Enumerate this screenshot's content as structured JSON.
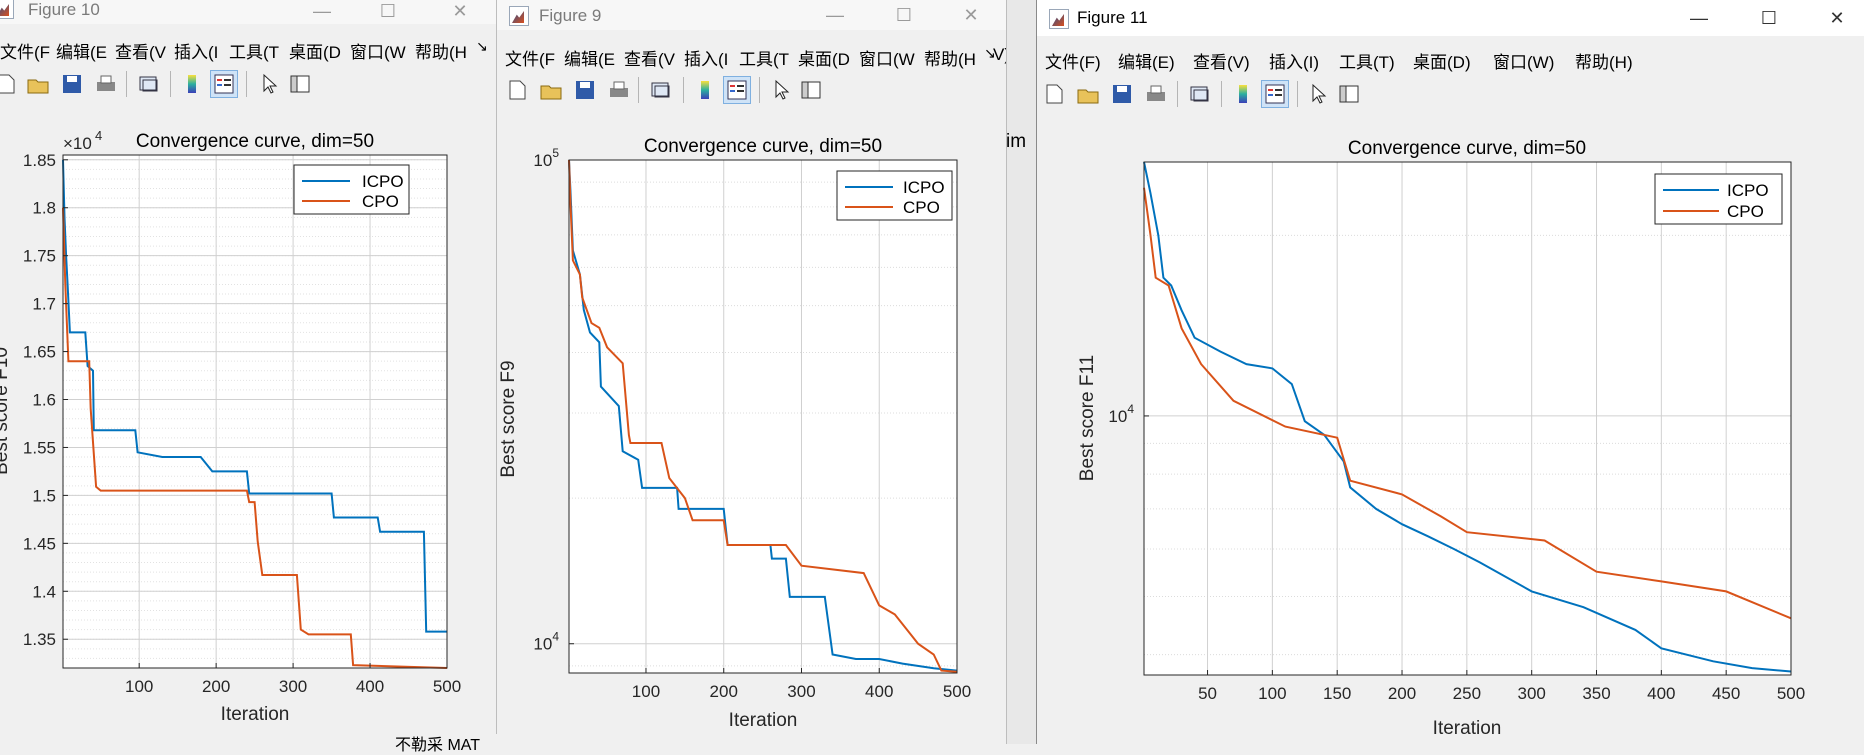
{
  "windows": [
    {
      "id": "fig10",
      "title": "Figure 10",
      "menu": [
        "文件(F",
        "编辑(E",
        "查看(V",
        "插入(I",
        "工具(T",
        "桌面(D",
        "窗口(W",
        "帮助(H"
      ],
      "menu_overflow": "↘",
      "plot_title": "Convergence curve, dim=50",
      "xlabel": "Iteration",
      "ylabel": "Best score F10",
      "exponent_label": "×10",
      "exponent_power": "4",
      "legend": [
        "ICPO",
        "CPO"
      ]
    },
    {
      "id": "fig9",
      "title": "Figure 9",
      "menu": [
        "文件(F",
        "编辑(E",
        "查看(V",
        "插入(I",
        "工具(T",
        "桌面(D",
        "窗口(W",
        "帮助(H"
      ],
      "menu_overflow": "↘",
      "menu_behind": "V)",
      "plot_title": "Convergence curve, dim=50",
      "xlabel": "Iteration",
      "ylabel": "Best score F9",
      "legend": [
        "ICPO",
        "CPO"
      ]
    },
    {
      "id": "fig11",
      "title": "Figure 11",
      "menu": [
        "文件(F)",
        "编辑(E)",
        "查看(V)",
        "插入(I)",
        "工具(T)",
        "桌面(D)",
        "窗口(W)",
        "帮助(H)"
      ],
      "plot_title": "Convergence curve, dim=50",
      "xlabel": "Iteration",
      "ylabel": "Best score F11",
      "legend": [
        "ICPO",
        "CPO"
      ]
    }
  ],
  "background_fragments": {
    "behind_fig9_axes": "im",
    "behind_fig10_taskbar": "不勒采 MAT"
  },
  "colors": {
    "icpo": "#0072BD",
    "cpo": "#D95319",
    "axes_bg": "#ffffff",
    "figure_bg": "#f0f0f0"
  },
  "chart_data": [
    {
      "type": "line",
      "title": "Convergence curve, dim=50",
      "xlabel": "Iteration",
      "ylabel": "Best score F10",
      "xlim": [
        1,
        500
      ],
      "ylim": [
        13200,
        18550
      ],
      "yscale": "linear",
      "y_exponent": 4,
      "xticks": [
        100,
        200,
        300,
        400,
        500
      ],
      "yticks": [
        13500,
        14000,
        14500,
        15000,
        15500,
        16000,
        16500,
        17000,
        17500,
        18000,
        18500
      ],
      "ytick_labels": [
        "1.35",
        "1.4",
        "1.45",
        "1.5",
        "1.55",
        "1.6",
        "1.65",
        "1.7",
        "1.75",
        "1.8",
        "1.85"
      ],
      "grid": true,
      "legend_position": "top-right",
      "series": [
        {
          "name": "ICPO",
          "points": [
            [
              1,
              18500
            ],
            [
              3,
              17900
            ],
            [
              5,
              17500
            ],
            [
              7,
              17200
            ],
            [
              10,
              16700
            ],
            [
              30,
              16700
            ],
            [
              33,
              16350
            ],
            [
              40,
              16300
            ],
            [
              41,
              15680
            ],
            [
              95,
              15680
            ],
            [
              98,
              15450
            ],
            [
              130,
              15400
            ],
            [
              180,
              15400
            ],
            [
              195,
              15250
            ],
            [
              240,
              15250
            ],
            [
              243,
              15020
            ],
            [
              350,
              15020
            ],
            [
              353,
              14770
            ],
            [
              410,
              14770
            ],
            [
              413,
              14620
            ],
            [
              470,
              14620
            ],
            [
              473,
              13580
            ],
            [
              500,
              13580
            ]
          ]
        },
        {
          "name": "CPO",
          "points": [
            [
              1,
              18000
            ],
            [
              4,
              17200
            ],
            [
              8,
              16400
            ],
            [
              35,
              16400
            ],
            [
              37,
              15900
            ],
            [
              44,
              15090
            ],
            [
              50,
              15050
            ],
            [
              240,
              15050
            ],
            [
              243,
              14930
            ],
            [
              250,
              14930
            ],
            [
              254,
              14520
            ],
            [
              260,
              14170
            ],
            [
              305,
              14170
            ],
            [
              310,
              13600
            ],
            [
              320,
              13550
            ],
            [
              375,
              13550
            ],
            [
              378,
              13230
            ],
            [
              500,
              13200
            ]
          ]
        }
      ]
    },
    {
      "type": "line",
      "title": "Convergence curve, dim=50",
      "xlabel": "Iteration",
      "ylabel": "Best score F9",
      "xlim": [
        1,
        500
      ],
      "ylim": [
        8700,
        100000
      ],
      "yscale": "log",
      "xticks": [
        100,
        200,
        300,
        400,
        500
      ],
      "yticks": [
        10000,
        100000
      ],
      "ytick_labels": [
        "10^4",
        "10^5"
      ],
      "grid": true,
      "legend_position": "top-right",
      "series": [
        {
          "name": "ICPO",
          "points": [
            [
              1,
              100000
            ],
            [
              3,
              85000
            ],
            [
              6,
              65000
            ],
            [
              15,
              58000
            ],
            [
              20,
              49000
            ],
            [
              28,
              44000
            ],
            [
              40,
              42000
            ],
            [
              42,
              34000
            ],
            [
              65,
              31000
            ],
            [
              70,
              25000
            ],
            [
              90,
              24000
            ],
            [
              95,
              21000
            ],
            [
              140,
              21000
            ],
            [
              142,
              19000
            ],
            [
              200,
              19000
            ],
            [
              205,
              16000
            ],
            [
              260,
              16000
            ],
            [
              262,
              15000
            ],
            [
              280,
              15000
            ],
            [
              285,
              12500
            ],
            [
              330,
              12500
            ],
            [
              340,
              9500
            ],
            [
              370,
              9300
            ],
            [
              400,
              9300
            ],
            [
              430,
              9100
            ],
            [
              470,
              8900
            ],
            [
              500,
              8800
            ]
          ]
        },
        {
          "name": "CPO",
          "points": [
            [
              1,
              100000
            ],
            [
              3,
              80000
            ],
            [
              6,
              62000
            ],
            [
              15,
              58000
            ],
            [
              18,
              52000
            ],
            [
              30,
              46000
            ],
            [
              40,
              45000
            ],
            [
              50,
              41000
            ],
            [
              70,
              38000
            ],
            [
              78,
              27000
            ],
            [
              80,
              26000
            ],
            [
              120,
              26000
            ],
            [
              130,
              22000
            ],
            [
              150,
              20000
            ],
            [
              160,
              18000
            ],
            [
              200,
              18000
            ],
            [
              205,
              16000
            ],
            [
              280,
              16000
            ],
            [
              300,
              14500
            ],
            [
              380,
              14000
            ],
            [
              400,
              12000
            ],
            [
              420,
              11500
            ],
            [
              450,
              10000
            ],
            [
              470,
              9500
            ],
            [
              480,
              8800
            ],
            [
              500,
              8750
            ]
          ]
        }
      ]
    },
    {
      "type": "line",
      "title": "Convergence curve, dim=50",
      "xlabel": "Iteration",
      "ylabel": "Best score F11",
      "xlim": [
        1,
        500
      ],
      "ylim": [
        3700,
        26500
      ],
      "yscale": "log",
      "xticks": [
        50,
        100,
        150,
        200,
        250,
        300,
        350,
        400,
        450,
        500
      ],
      "yticks": [
        10000
      ],
      "ytick_labels": [
        "10^4"
      ],
      "grid": true,
      "legend_position": "top-right",
      "series": [
        {
          "name": "ICPO",
          "points": [
            [
              1,
              26500
            ],
            [
              6,
              23500
            ],
            [
              12,
              20000
            ],
            [
              16,
              17000
            ],
            [
              22,
              16500
            ],
            [
              30,
              15000
            ],
            [
              40,
              13500
            ],
            [
              60,
              12800
            ],
            [
              80,
              12200
            ],
            [
              100,
              12000
            ],
            [
              115,
              11300
            ],
            [
              125,
              9800
            ],
            [
              140,
              9300
            ],
            [
              155,
              8400
            ],
            [
              160,
              7600
            ],
            [
              180,
              7000
            ],
            [
              200,
              6600
            ],
            [
              220,
              6300
            ],
            [
              240,
              6000
            ],
            [
              260,
              5700
            ],
            [
              300,
              5100
            ],
            [
              340,
              4800
            ],
            [
              380,
              4400
            ],
            [
              400,
              4100
            ],
            [
              440,
              3900
            ],
            [
              470,
              3800
            ],
            [
              500,
              3750
            ]
          ]
        },
        {
          "name": "CPO",
          "points": [
            [
              1,
              24000
            ],
            [
              6,
              20000
            ],
            [
              10,
              17000
            ],
            [
              20,
              16500
            ],
            [
              30,
              14000
            ],
            [
              45,
              12200
            ],
            [
              70,
              10600
            ],
            [
              110,
              9600
            ],
            [
              150,
              9200
            ],
            [
              160,
              7800
            ],
            [
              200,
              7400
            ],
            [
              230,
              6800
            ],
            [
              250,
              6400
            ],
            [
              310,
              6200
            ],
            [
              350,
              5500
            ],
            [
              400,
              5300
            ],
            [
              450,
              5100
            ],
            [
              500,
              4600
            ]
          ]
        }
      ]
    }
  ]
}
